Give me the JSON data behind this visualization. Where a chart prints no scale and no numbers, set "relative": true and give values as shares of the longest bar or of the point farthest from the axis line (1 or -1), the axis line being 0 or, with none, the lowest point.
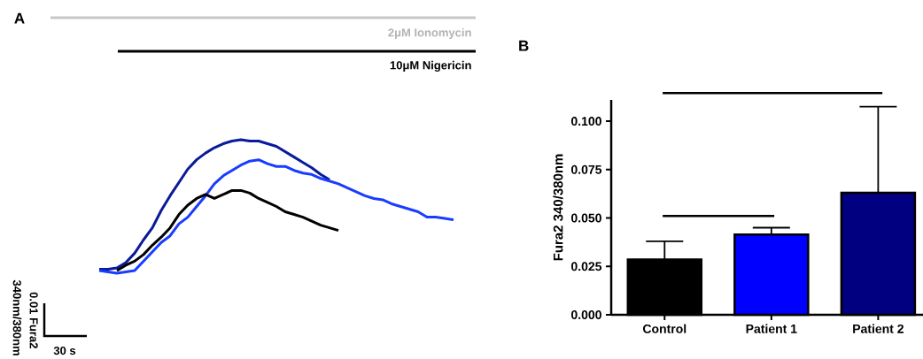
{
  "chart_data": [
    {
      "type": "line",
      "relative": true,
      "categories": [
        null,
        null,
        null,
        null,
        null,
        null,
        null,
        null,
        null,
        null,
        null,
        null,
        null,
        null,
        null,
        null,
        null,
        null,
        null,
        null,
        null,
        null,
        null,
        null,
        null,
        null,
        null,
        null,
        null,
        null,
        null,
        null,
        null,
        null,
        null,
        null,
        null,
        null,
        null,
        null,
        null
      ],
      "series": [
        {
          "color": "#0a1a9a",
          "values": [
            0.03,
            0.03,
            0.04,
            0.08,
            0.15,
            0.25,
            0.34,
            0.47,
            0.58,
            0.68,
            0.78,
            0.85,
            0.9,
            0.94,
            0.97,
            0.99,
            1,
            0.99,
            0.99,
            0.97,
            0.95,
            0.91,
            0.87,
            0.83,
            0.79,
            0.74,
            0.7,
            null,
            null,
            null,
            null,
            null,
            null,
            null,
            null,
            null,
            null,
            null,
            null,
            null,
            null
          ]
        },
        {
          "color": "#1a3cff",
          "values": [
            0.02,
            0.01,
            0,
            0.01,
            0.02,
            0.09,
            0.16,
            0.23,
            0.28,
            0.37,
            0.42,
            0.5,
            0.58,
            0.67,
            0.73,
            0.77,
            0.81,
            0.84,
            0.85,
            0.82,
            0.8,
            0.8,
            0.77,
            0.75,
            0.74,
            0.71,
            0.69,
            0.67,
            0.64,
            0.61,
            0.58,
            0.56,
            0.55,
            0.52,
            0.5,
            0.48,
            0.46,
            0.42,
            0.42,
            0.41,
            0.4
          ]
        },
        {
          "color": "#000000",
          "values": [
            null,
            null,
            0.02,
            0.06,
            0.09,
            0.14,
            0.21,
            0.27,
            0.34,
            0.44,
            0.51,
            0.56,
            0.59,
            0.56,
            0.59,
            0.62,
            0.62,
            0.6,
            0.56,
            0.53,
            0.5,
            0.46,
            0.44,
            0.42,
            0.39,
            0.36,
            0.34,
            0.32,
            null,
            null,
            null,
            null,
            null,
            null,
            null,
            null,
            null,
            null,
            null,
            null,
            null
          ]
        }
      ],
      "annotations": [
        "A",
        "2μM Ionomycin",
        "10μM Nigericin",
        "0.01 Fura2",
        "340nm/380nm",
        "30 s"
      ]
    },
    {
      "type": "bar",
      "categories": [
        "Control",
        "Patient 1",
        "Patient 2"
      ],
      "values": [
        0.0285,
        0.0415,
        0.063
      ],
      "colors": [
        "#000000",
        "#0000ff",
        "#000080"
      ],
      "errors": [
        [
          0.0285,
          0.038
        ],
        [
          0.0415,
          0.045
        ],
        [
          0.063,
          0.1075
        ]
      ],
      "ylabel": "Fura2 340/380nm",
      "ylim": [
        0,
        0.111
      ],
      "yticks": [
        {
          "value": 0,
          "label": "0.000"
        },
        {
          "value": 0.025,
          "label": "0.025"
        },
        {
          "value": 0.05,
          "label": "0.050"
        },
        {
          "value": 0.075,
          "label": "0.075"
        },
        {
          "value": 0.1,
          "label": "0.100"
        }
      ],
      "annotations": [
        "B"
      ]
    }
  ]
}
